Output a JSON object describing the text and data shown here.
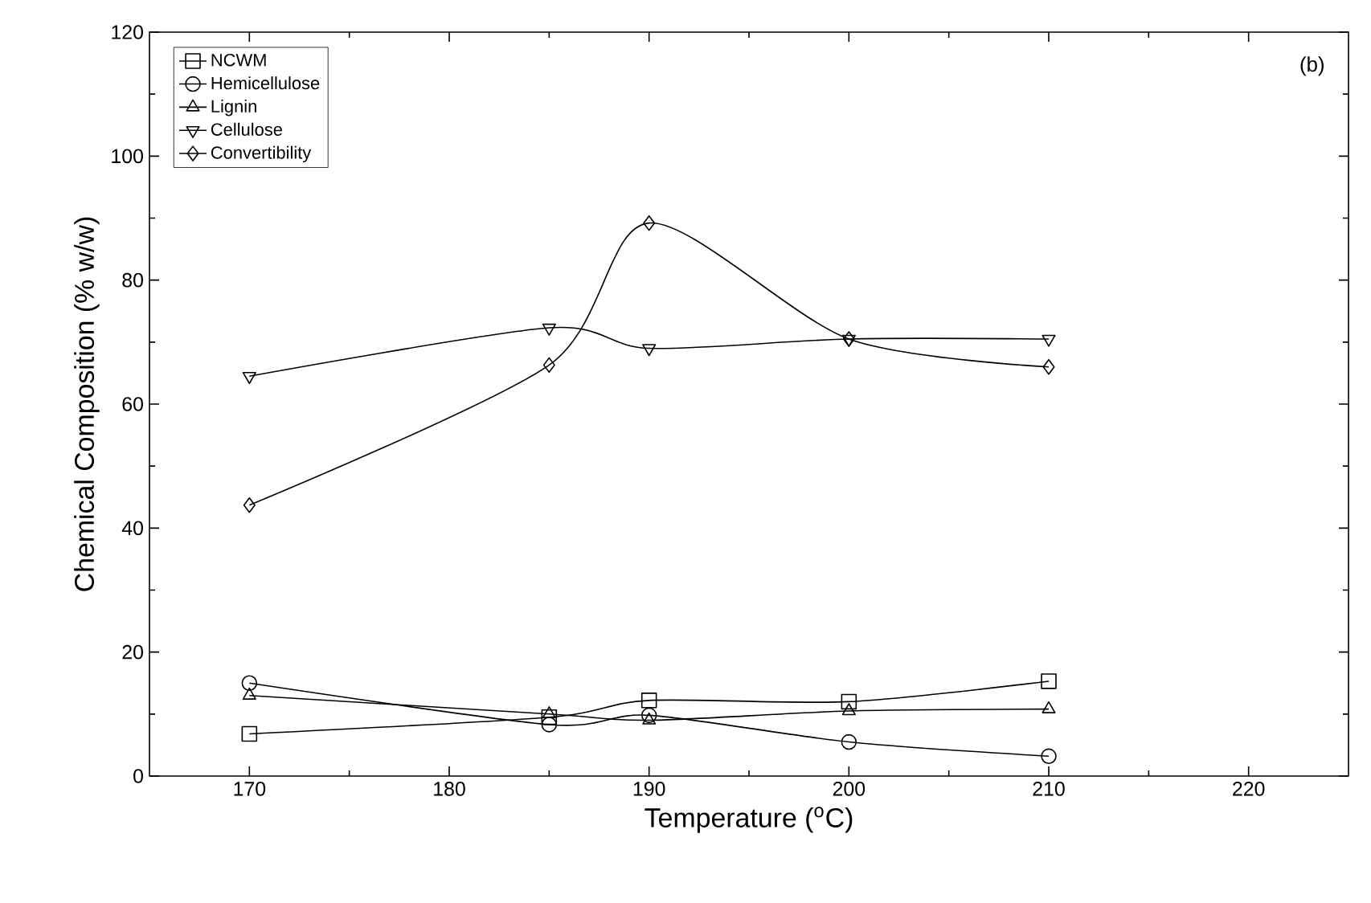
{
  "chart_data": {
    "type": "line",
    "xlabel": "Temperature ($^{o}$C)",
    "ylabel": "Chemical Composition (% w/w)",
    "x": [
      170,
      185,
      190,
      200,
      210
    ],
    "series": [
      {
        "name": "NCWM",
        "color": "#000000",
        "marker": "square",
        "values": [
          6.8,
          9.5,
          12.2,
          12,
          15.3
        ]
      },
      {
        "name": "Hemicellulose",
        "color": "#000000",
        "marker": "circle",
        "values": [
          15,
          8.3,
          9.8,
          5.5,
          3.2
        ]
      },
      {
        "name": "Lignin",
        "color": "#000000",
        "marker": "triangle",
        "values": [
          13,
          10,
          9,
          10.5,
          10.8
        ]
      },
      {
        "name": "Cellulose",
        "color": "#000000",
        "marker": "triangle down",
        "values": [
          64.5,
          72.3,
          69,
          70.5,
          70.5
        ]
      },
      {
        "name": "Convertibility",
        "color": "#000000",
        "marker": "diamond",
        "values": [
          43.7,
          66.3,
          89.2,
          70.5,
          66
        ]
      }
    ],
    "xlim": [
      165,
      225
    ],
    "xticks": [
      170,
      180,
      190,
      200,
      210,
      220
    ],
    "ylim": [
      0,
      120
    ],
    "yticks": [
      0,
      20,
      40,
      60,
      80,
      100,
      120
    ],
    "grid": false,
    "legend": "top left",
    "line_style": "solid",
    "annotations": [
      "(b)"
    ]
  }
}
